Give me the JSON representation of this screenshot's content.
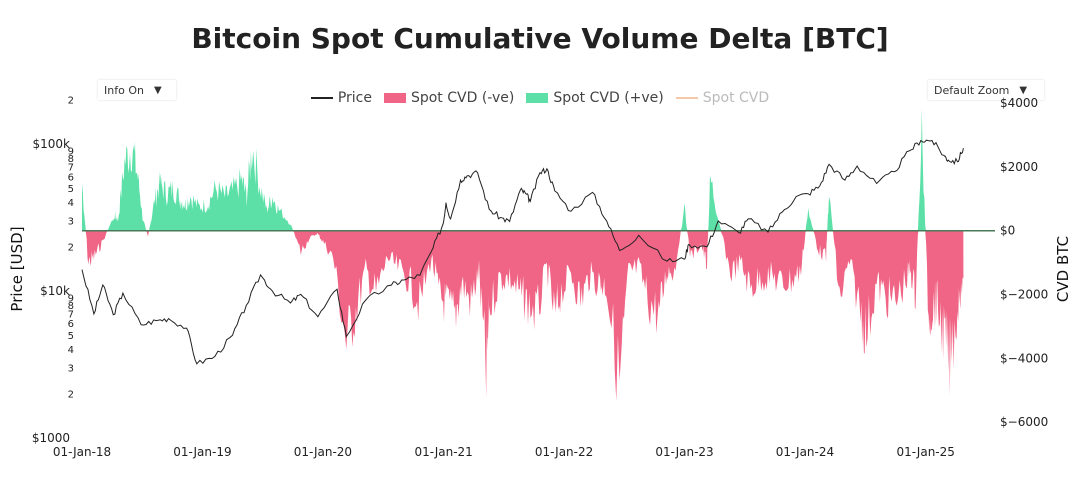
{
  "chart_data": {
    "type": "area",
    "title": "Bitcoin Spot Cumulative Volume Delta [BTC]",
    "controls": {
      "info": "Info On",
      "zoom": "Default Zoom"
    },
    "legend": [
      "Price",
      "Spot CVD (-ve)",
      "Spot CVD (+ve)",
      "Spot CVD"
    ],
    "colors": {
      "price": "#222222",
      "neg": "#f06585",
      "pos": "#5de0a8",
      "cvd_hidden": "#f4c8a8"
    },
    "x_ticks": [
      "01-Jan-18",
      "01-Jan-19",
      "01-Jan-20",
      "01-Jan-21",
      "01-Jan-22",
      "01-Jan-23",
      "01-Jan-24",
      "01-Jan-25"
    ],
    "x_range": [
      "2018-01-01",
      "2025-04-30"
    ],
    "y_left": {
      "label": "Price [USD]",
      "scale": "log",
      "range": [
        1000,
        200000
      ],
      "major_ticks": [
        "$1000",
        "$10k",
        "$100k"
      ],
      "minor_ticks": [
        "2",
        "3",
        "4",
        "5",
        "6",
        "7",
        "8",
        "9"
      ]
    },
    "y_right": {
      "label": "CVD BTC",
      "range": [
        -6500,
        4100
      ],
      "ticks": [
        "$4000",
        "$2000",
        "$0",
        "$−2000",
        "$−4000",
        "$−6000"
      ]
    },
    "price_series": {
      "x": [
        "2018-01-01",
        "2018-02-06",
        "2018-03-05",
        "2018-04-06",
        "2018-05-05",
        "2018-06-29",
        "2018-08-14",
        "2018-09-20",
        "2018-11-14",
        "2018-12-15",
        "2019-02-08",
        "2019-04-02",
        "2019-05-14",
        "2019-06-26",
        "2019-08-01",
        "2019-09-25",
        "2019-10-26",
        "2019-12-17",
        "2020-02-13",
        "2020-03-12",
        "2020-05-10",
        "2020-07-27",
        "2020-09-02",
        "2020-10-21",
        "2020-11-30",
        "2020-12-31",
        "2021-01-08",
        "2021-01-22",
        "2021-02-21",
        "2021-03-13",
        "2021-04-14",
        "2021-05-19",
        "2021-06-22",
        "2021-07-20",
        "2021-08-22",
        "2021-09-07",
        "2021-09-21",
        "2021-10-20",
        "2021-11-10",
        "2021-12-04",
        "2022-01-22",
        "2022-03-28",
        "2022-05-10",
        "2022-06-18",
        "2022-08-15",
        "2022-11-09",
        "2022-12-31",
        "2023-01-14",
        "2023-03-10",
        "2023-04-13",
        "2023-06-15",
        "2023-07-13",
        "2023-09-11",
        "2023-10-24",
        "2023-12-05",
        "2024-01-11",
        "2024-02-15",
        "2024-03-14",
        "2024-05-01",
        "2024-06-07",
        "2024-08-05",
        "2024-09-28",
        "2024-11-12",
        "2024-12-17",
        "2025-01-20",
        "2025-02-25",
        "2025-03-10",
        "2025-04-07",
        "2025-04-25"
      ],
      "y": [
        14000,
        7000,
        11000,
        6900,
        9700,
        5900,
        6300,
        6500,
        5600,
        3200,
        3600,
        5000,
        8000,
        12900,
        10000,
        8300,
        9500,
        6700,
        10300,
        4900,
        8700,
        11000,
        11900,
        12800,
        19700,
        29000,
        40000,
        31000,
        57000,
        61000,
        64000,
        36000,
        31700,
        29800,
        49000,
        46000,
        41000,
        64000,
        68000,
        48000,
        35000,
        47000,
        30000,
        18900,
        24000,
        16000,
        16500,
        20800,
        20000,
        30000,
        25000,
        31000,
        25200,
        34500,
        44000,
        46000,
        52000,
        73000,
        57000,
        71000,
        54000,
        65000,
        90000,
        106000,
        106000,
        84000,
        78000,
        76000,
        94000
      ]
    },
    "cvd_series": {
      "x": [
        "2018-01-01",
        "2018-01-20",
        "2018-02-06",
        "2018-03-01",
        "2018-04-10",
        "2018-04-20",
        "2018-05-10",
        "2018-06-01",
        "2018-06-20",
        "2018-07-05",
        "2018-07-20",
        "2018-08-10",
        "2018-08-25",
        "2018-09-15",
        "2018-10-05",
        "2018-10-25",
        "2018-11-10",
        "2018-11-25",
        "2018-12-20",
        "2019-01-15",
        "2019-02-10",
        "2019-03-10",
        "2019-04-02",
        "2019-05-01",
        "2019-05-15",
        "2019-06-01",
        "2019-06-26",
        "2019-07-15",
        "2019-08-01",
        "2019-08-20",
        "2019-09-24",
        "2019-10-26",
        "2019-11-20",
        "2019-12-15",
        "2020-01-01",
        "2020-02-01",
        "2020-03-12",
        "2020-04-10",
        "2020-05-10",
        "2020-06-10",
        "2020-07-15",
        "2020-08-15",
        "2020-09-20",
        "2020-10-20",
        "2020-11-25",
        "2020-12-20",
        "2021-01-10",
        "2021-02-05",
        "2021-02-25",
        "2021-03-25",
        "2021-04-18",
        "2021-05-10",
        "2021-05-19",
        "2021-06-20",
        "2021-07-20",
        "2021-08-20",
        "2021-09-10",
        "2021-10-10",
        "2021-11-10",
        "2021-12-04",
        "2021-12-20",
        "2022-01-22",
        "2022-02-20",
        "2022-03-20",
        "2022-04-20",
        "2022-05-10",
        "2022-06-18",
        "2022-07-15",
        "2022-08-15",
        "2022-09-15",
        "2022-10-15",
        "2022-11-09",
        "2022-12-01",
        "2023-01-01",
        "2023-01-20",
        "2023-02-20",
        "2023-03-10",
        "2023-03-20",
        "2023-04-15",
        "2023-05-20",
        "2023-06-20",
        "2023-07-20",
        "2023-08-17",
        "2023-09-20",
        "2023-10-20",
        "2023-11-20",
        "2023-12-20",
        "2024-01-11",
        "2024-02-10",
        "2024-03-05",
        "2024-03-14",
        "2024-04-15",
        "2024-05-15",
        "2024-06-15",
        "2024-07-05",
        "2024-08-05",
        "2024-09-01",
        "2024-10-01",
        "2024-11-05",
        "2024-11-15",
        "2024-12-01",
        "2024-12-20",
        "2025-01-10",
        "2025-01-25",
        "2025-02-05",
        "2025-02-25",
        "2025-03-15",
        "2025-04-07",
        "2025-04-25"
      ],
      "y": [
        1800,
        -1200,
        -1000,
        -500,
        600,
        400,
        2600,
        3200,
        2000,
        400,
        -200,
        1200,
        1800,
        1400,
        1600,
        1200,
        1000,
        1300,
        900,
        1000,
        1600,
        1300,
        1500,
        1900,
        1300,
        3200,
        1600,
        800,
        1300,
        800,
        300,
        -800,
        -300,
        -100,
        -400,
        -1000,
        -4200,
        -3000,
        -1500,
        -2400,
        -1000,
        -1400,
        -1900,
        -2800,
        -1000,
        -2500,
        -2800,
        -3200,
        -2000,
        -2700,
        -1500,
        -5500,
        -3000,
        -1800,
        -1800,
        -2400,
        -2700,
        -3200,
        -1400,
        -3300,
        -2400,
        -1600,
        -2600,
        -1700,
        -2000,
        -2100,
        -5800,
        -1600,
        -1400,
        -2700,
        -3200,
        -1500,
        -1500,
        800,
        -1000,
        -500,
        -1300,
        2000,
        400,
        -1600,
        -1200,
        -2200,
        -1800,
        -1700,
        -2000,
        -1900,
        -1500,
        800,
        -700,
        -1000,
        1500,
        -2600,
        -1200,
        -2900,
        -3900,
        -2000,
        -2500,
        -2700,
        -1800,
        -1400,
        -2400,
        3700,
        -3300,
        -2800,
        -2800,
        -4000,
        -5000,
        -3000,
        -1500
      ]
    }
  }
}
